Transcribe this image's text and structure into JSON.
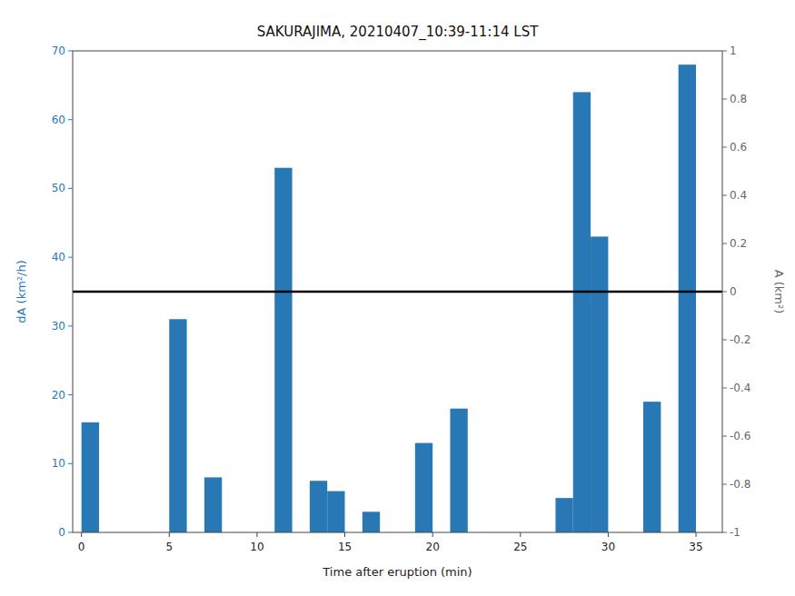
{
  "chart_data": {
    "type": "bar",
    "title": "SAKURAJIMA, 20210407_10:39-11:14 LST",
    "x_label": "Time after eruption (min)",
    "y_label": "dA (km²/h)",
    "y2_label": "A (km²)",
    "x": [
      0,
      5,
      7,
      11,
      13,
      14,
      16,
      19,
      21,
      27,
      28,
      29,
      32,
      34
    ],
    "values": [
      16,
      31,
      8,
      53,
      7.5,
      6,
      3,
      13,
      18,
      5,
      64,
      43,
      19,
      68
    ],
    "color": "#2878b5",
    "hline": 35,
    "xlim": [
      -0.5,
      36.5
    ],
    "xticks": [
      0,
      5,
      10,
      15,
      20,
      25,
      30,
      35
    ],
    "ylim": [
      0,
      70
    ],
    "yticks": [
      0,
      10,
      20,
      30,
      40,
      50,
      60,
      70
    ],
    "y2lim": [
      -1,
      1
    ],
    "y2ticks": [
      -1,
      -0.8,
      -0.6,
      -0.4,
      -0.2,
      0,
      0.2,
      0.4,
      0.6,
      0.8,
      1
    ],
    "grid": false
  }
}
